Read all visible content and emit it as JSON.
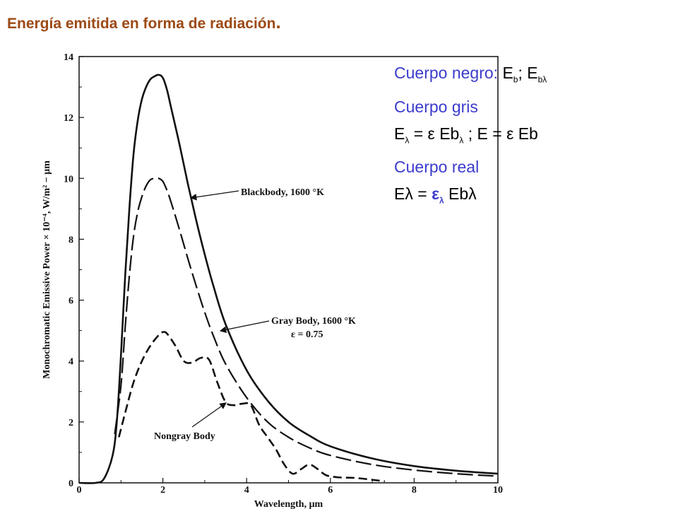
{
  "title": {
    "text": "Energía emitida en forma de radiación",
    "dot": "."
  },
  "notes": {
    "line1_label": "Cuerpo negro: ",
    "line1_e": "E",
    "line1_sub_b": "b",
    "line1_sep": "; E",
    "line1_sub_bl": "bλ",
    "line2": "Cuerpo gris",
    "line3_e": "E",
    "line3_sub": "λ",
    "line3_mid": " = ε Eb",
    "line3_sub2": "λ",
    "line3_rest": " ; E = ε Eb",
    "line4": "Cuerpo real",
    "line5_a": "Eλ = ",
    "line5_eps": "ε",
    "line5_sub": "λ",
    "line5_b": " Ebλ"
  },
  "colors": {
    "title": "#9c4a16",
    "notes_blue": "#3b3bcc",
    "ink": "#111111"
  },
  "chart_data": {
    "type": "line",
    "xlabel": "Wavelength, μm",
    "ylabel": "Monochromatic Emissive Power × 10⁻⁴, W/m² − μm",
    "xlim": [
      0,
      10
    ],
    "ylim": [
      0,
      14
    ],
    "xticks": [
      "0",
      "2",
      "4",
      "6",
      "8",
      "10"
    ],
    "yticks": [
      "0",
      "2",
      "4",
      "6",
      "8",
      "10",
      "12",
      "14"
    ],
    "grid": false,
    "annotations": [
      {
        "text": "Blackbody, 1600 °K"
      },
      {
        "text": "Gray Body, 1600 °K"
      },
      {
        "text": "ε = 0.75"
      },
      {
        "text": "Nongray Body"
      }
    ],
    "series": [
      {
        "name": "Blackbody, 1600 °K",
        "style": "solid",
        "x": [
          0,
          0.4,
          0.6,
          0.8,
          0.9,
          1.0,
          1.1,
          1.2,
          1.3,
          1.4,
          1.5,
          1.6,
          1.7,
          1.8,
          1.9,
          2.0,
          2.1,
          2.2,
          2.4,
          2.6,
          2.8,
          3.0,
          3.2,
          3.5,
          4.0,
          4.5,
          5.0,
          5.5,
          6.0,
          7.0,
          8.0,
          9.0,
          10.0
        ],
        "y": [
          0,
          0,
          0.15,
          0.9,
          2.0,
          4.2,
          6.8,
          9.0,
          10.8,
          11.9,
          12.6,
          13.0,
          13.25,
          13.35,
          13.4,
          13.3,
          12.9,
          12.3,
          11.1,
          9.8,
          8.6,
          7.5,
          6.5,
          5.2,
          3.7,
          2.7,
          2.0,
          1.55,
          1.2,
          0.8,
          0.55,
          0.4,
          0.3
        ]
      },
      {
        "name": "Gray Body, 1600 °K",
        "style": "dashed",
        "x": [
          0.85,
          1.0,
          1.1,
          1.2,
          1.3,
          1.4,
          1.5,
          1.6,
          1.7,
          1.8,
          1.9,
          2.0,
          2.1,
          2.2,
          2.4,
          2.6,
          2.8,
          3.0,
          3.2,
          3.5,
          4.0,
          4.5,
          5.0,
          5.5,
          6.0,
          7.0,
          8.0,
          9.0,
          10.0
        ],
        "y": [
          1.6,
          3.2,
          5.1,
          6.8,
          8.1,
          8.9,
          9.4,
          9.75,
          9.95,
          10.0,
          10.0,
          9.9,
          9.6,
          9.2,
          8.3,
          7.35,
          6.45,
          5.6,
          4.85,
          3.9,
          2.8,
          2.0,
          1.5,
          1.15,
          0.9,
          0.6,
          0.42,
          0.3,
          0.22
        ]
      },
      {
        "name": "Nongray Body",
        "style": "dashed",
        "x": [
          0.95,
          1.1,
          1.3,
          1.5,
          1.7,
          1.9,
          2.0,
          2.1,
          2.3,
          2.5,
          2.7,
          2.9,
          3.1,
          3.3,
          3.5,
          3.7,
          3.9,
          4.1,
          4.3,
          4.5,
          4.7,
          4.9,
          5.1,
          5.3,
          5.5,
          5.7,
          5.9,
          6.2,
          6.6,
          7.0,
          7.3
        ],
        "y": [
          1.5,
          2.3,
          3.3,
          4.0,
          4.5,
          4.85,
          4.95,
          4.9,
          4.5,
          4.0,
          3.95,
          4.1,
          4.05,
          3.3,
          2.65,
          2.55,
          2.6,
          2.55,
          1.9,
          1.5,
          1.1,
          0.6,
          0.3,
          0.45,
          0.6,
          0.45,
          0.25,
          0.18,
          0.16,
          0.1,
          0.05
        ]
      }
    ]
  }
}
